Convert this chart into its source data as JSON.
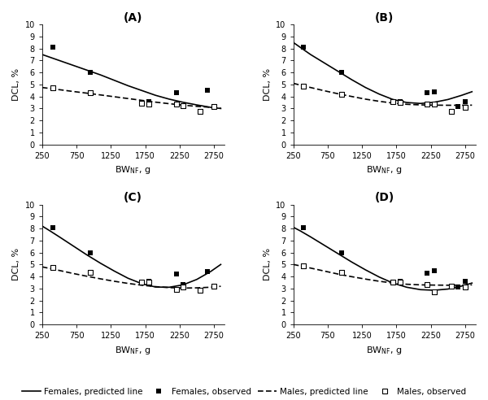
{
  "title_A": "(A)",
  "title_B": "(B)",
  "title_C": "(C)",
  "title_D": "(D)",
  "ylabel": "DCL, %",
  "ylim": [
    0,
    10
  ],
  "yticks": [
    0,
    1,
    2,
    3,
    4,
    5,
    6,
    7,
    8,
    9,
    10
  ],
  "xlim": [
    250,
    2900
  ],
  "xticks": [
    250,
    750,
    1250,
    1750,
    2250,
    2750
  ],
  "females_obs_x": [
    400,
    950,
    1700,
    1800,
    2200,
    2300,
    2650,
    2750
  ],
  "females_obs_y_A": [
    8.1,
    6.0,
    3.5,
    3.55,
    4.3,
    3.25,
    4.5,
    3.15
  ],
  "females_obs_y_B": [
    8.1,
    6.0,
    3.55,
    3.6,
    4.3,
    4.4,
    3.15,
    3.55
  ],
  "females_obs_y_C": [
    8.1,
    6.0,
    3.55,
    3.6,
    4.2,
    3.35,
    4.4,
    3.1
  ],
  "females_obs_y_D": [
    8.1,
    6.0,
    3.5,
    3.6,
    4.3,
    4.45,
    3.15,
    3.6
  ],
  "males_obs_x": [
    400,
    950,
    1700,
    1800,
    2200,
    2300,
    2550,
    2750
  ],
  "males_obs_y_A": [
    4.75,
    4.3,
    3.45,
    3.4,
    3.4,
    3.25,
    2.75,
    3.15
  ],
  "males_obs_y_B": [
    4.85,
    4.2,
    3.55,
    3.5,
    3.35,
    3.35,
    2.75,
    3.1
  ],
  "males_obs_y_C": [
    4.75,
    4.35,
    3.55,
    3.5,
    2.9,
    3.1,
    2.85,
    3.2
  ],
  "males_obs_y_D": [
    4.85,
    4.35,
    3.55,
    3.5,
    3.3,
    2.7,
    3.2,
    3.15
  ],
  "female_line_color": "#000000",
  "male_line_color": "#000000",
  "line_x": [
    250,
    350,
    500,
    700,
    900,
    1100,
    1300,
    1500,
    1700,
    1900,
    2100,
    2300,
    2500,
    2700,
    2850
  ],
  "female_line_y_A": [
    7.5,
    7.3,
    7.0,
    6.6,
    6.2,
    5.8,
    5.35,
    4.9,
    4.5,
    4.1,
    3.78,
    3.52,
    3.3,
    3.1,
    3.0
  ],
  "male_line_y_A": [
    4.75,
    4.68,
    4.57,
    4.42,
    4.28,
    4.13,
    3.98,
    3.83,
    3.68,
    3.53,
    3.4,
    3.28,
    3.18,
    3.1,
    3.05
  ],
  "female_line_y_B": [
    8.5,
    8.1,
    7.5,
    6.8,
    6.1,
    5.4,
    4.75,
    4.2,
    3.75,
    3.5,
    3.42,
    3.52,
    3.75,
    4.1,
    4.4
  ],
  "male_line_y_B": [
    5.1,
    4.95,
    4.75,
    4.48,
    4.23,
    4.0,
    3.78,
    3.6,
    3.45,
    3.35,
    3.3,
    3.28,
    3.27,
    3.27,
    3.28
  ],
  "female_line_y_C": [
    8.2,
    7.85,
    7.3,
    6.55,
    5.8,
    5.1,
    4.45,
    3.85,
    3.4,
    3.12,
    3.1,
    3.3,
    3.75,
    4.4,
    5.0
  ],
  "male_line_y_C": [
    4.8,
    4.68,
    4.5,
    4.25,
    4.02,
    3.8,
    3.6,
    3.42,
    3.27,
    3.15,
    3.07,
    3.03,
    3.05,
    3.1,
    3.18
  ],
  "female_line_y_D": [
    8.1,
    7.8,
    7.3,
    6.6,
    5.9,
    5.2,
    4.55,
    3.95,
    3.45,
    3.1,
    2.9,
    2.85,
    2.95,
    3.2,
    3.45
  ],
  "male_line_y_D": [
    5.0,
    4.88,
    4.7,
    4.45,
    4.2,
    3.98,
    3.78,
    3.6,
    3.45,
    3.35,
    3.3,
    3.28,
    3.27,
    3.28,
    3.3
  ],
  "bg_color": "#ffffff",
  "fontsize_title": 10,
  "fontsize_label": 8,
  "fontsize_tick": 7,
  "fontsize_legend": 7.5
}
